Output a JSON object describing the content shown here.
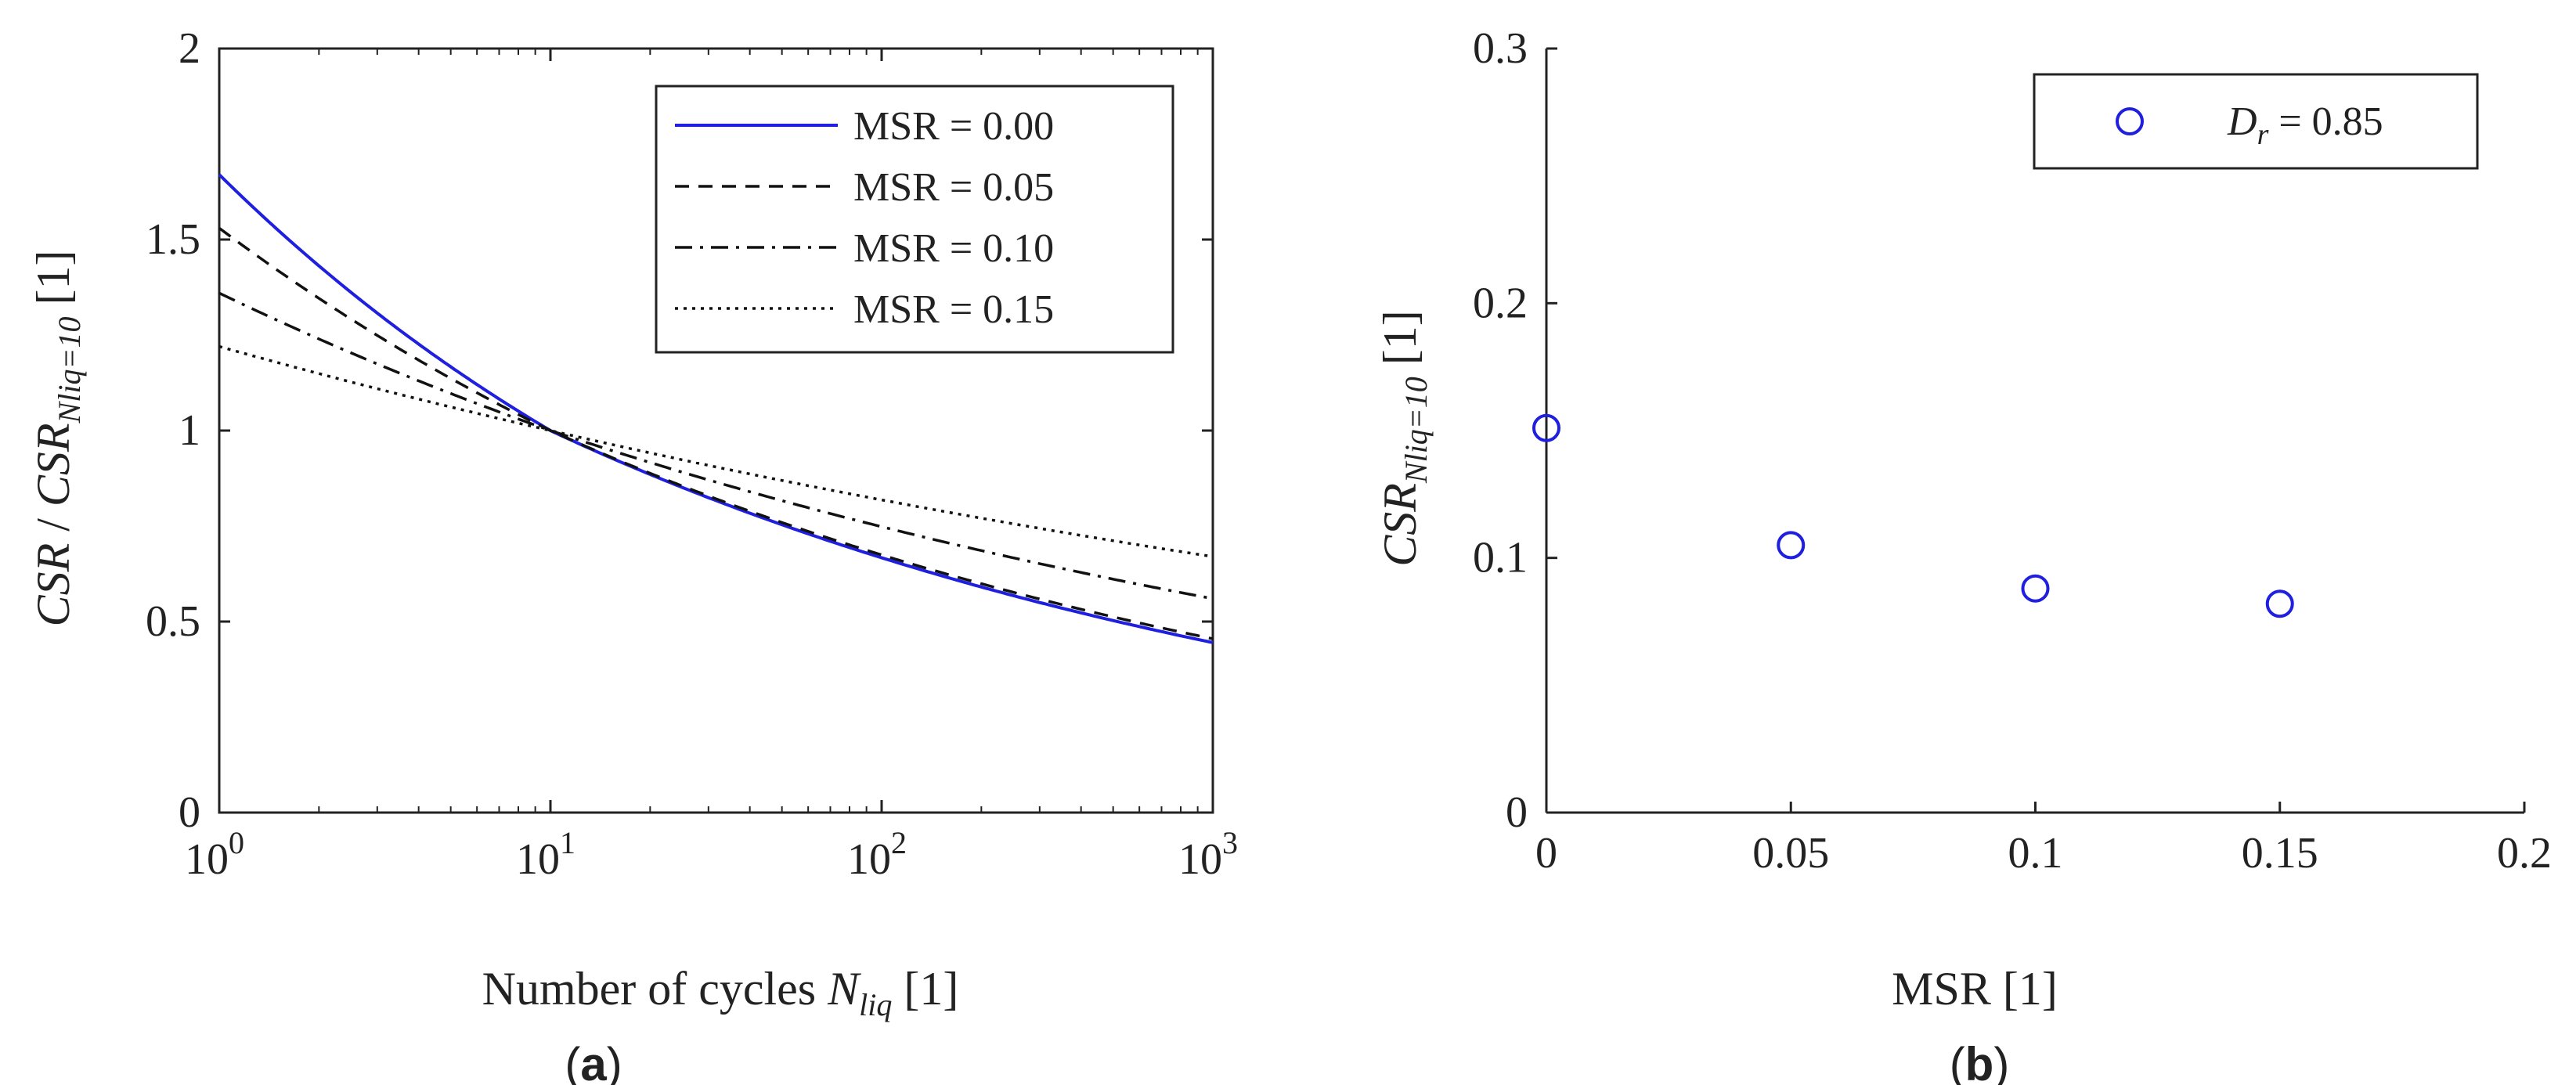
{
  "chart_data": [
    {
      "id": "a",
      "type": "line",
      "panel_label": {
        "open": "(",
        "letter": "a",
        "close": ")"
      },
      "xscale": "log",
      "xlim": [
        1,
        1000
      ],
      "ylim": [
        0,
        2
      ],
      "xticks": [
        {
          "base": "10",
          "exp": "0",
          "value": 1
        },
        {
          "base": "10",
          "exp": "1",
          "value": 10
        },
        {
          "base": "10",
          "exp": "2",
          "value": 100
        },
        {
          "base": "10",
          "exp": "3",
          "value": 1000
        }
      ],
      "yticks": [
        {
          "label": "0",
          "value": 0
        },
        {
          "label": "0.5",
          "value": 0.5
        },
        {
          "label": "1",
          "value": 1
        },
        {
          "label": "1.5",
          "value": 1.5
        },
        {
          "label": "2",
          "value": 2
        }
      ],
      "xlabel": {
        "text": "Number of cycles ",
        "sym": "N",
        "sub": "liq",
        "unit": " [1]"
      },
      "ylabel": {
        "num": "CSR",
        "sep": " / ",
        "den": "CSR",
        "sub": "Nliq=10",
        "unit": " [1]"
      },
      "legend_position": "top-right",
      "series": [
        {
          "name": "MSR = 0.00",
          "style": "solid",
          "color": "#1f1fe0",
          "x": [
            1,
            10,
            1000
          ],
          "y": [
            1.67,
            1.0,
            0.445
          ]
        },
        {
          "name": "MSR = 0.05",
          "style": "dashed",
          "color": "#111111",
          "x": [
            1,
            10,
            1000
          ],
          "y": [
            1.53,
            1.0,
            0.455
          ]
        },
        {
          "name": "MSR = 0.10",
          "style": "dashdot",
          "color": "#111111",
          "x": [
            1,
            10,
            1000
          ],
          "y": [
            1.36,
            1.0,
            0.56
          ]
        },
        {
          "name": "MSR = 0.15",
          "style": "dotted",
          "color": "#111111",
          "x": [
            1,
            10,
            1000
          ],
          "y": [
            1.22,
            1.0,
            0.67
          ]
        }
      ]
    },
    {
      "id": "b",
      "type": "scatter",
      "panel_label": {
        "open": "(",
        "letter": "b",
        "close": ")"
      },
      "xlim": [
        0,
        0.2
      ],
      "ylim": [
        0,
        0.3
      ],
      "xticks": [
        {
          "label": "0",
          "value": 0
        },
        {
          "label": "0.05",
          "value": 0.05
        },
        {
          "label": "0.1",
          "value": 0.1
        },
        {
          "label": "0.15",
          "value": 0.15
        },
        {
          "label": "0.2",
          "value": 0.2
        }
      ],
      "yticks": [
        {
          "label": "0",
          "value": 0
        },
        {
          "label": "0.1",
          "value": 0.1
        },
        {
          "label": "0.2",
          "value": 0.2
        },
        {
          "label": "0.3",
          "value": 0.3
        }
      ],
      "xlabel": {
        "text": "MSR [1]"
      },
      "ylabel": {
        "num": "CSR",
        "sub": "Nliq=10",
        "unit": " [1]"
      },
      "legend_position": "top-right",
      "series": [
        {
          "name": "D",
          "name_sub": "r",
          "name_rest": " = 0.85",
          "marker": "circle-open",
          "color": "#1f1fe0",
          "x": [
            0,
            0.05,
            0.1,
            0.15
          ],
          "y": [
            0.151,
            0.105,
            0.088,
            0.082
          ]
        }
      ]
    }
  ]
}
